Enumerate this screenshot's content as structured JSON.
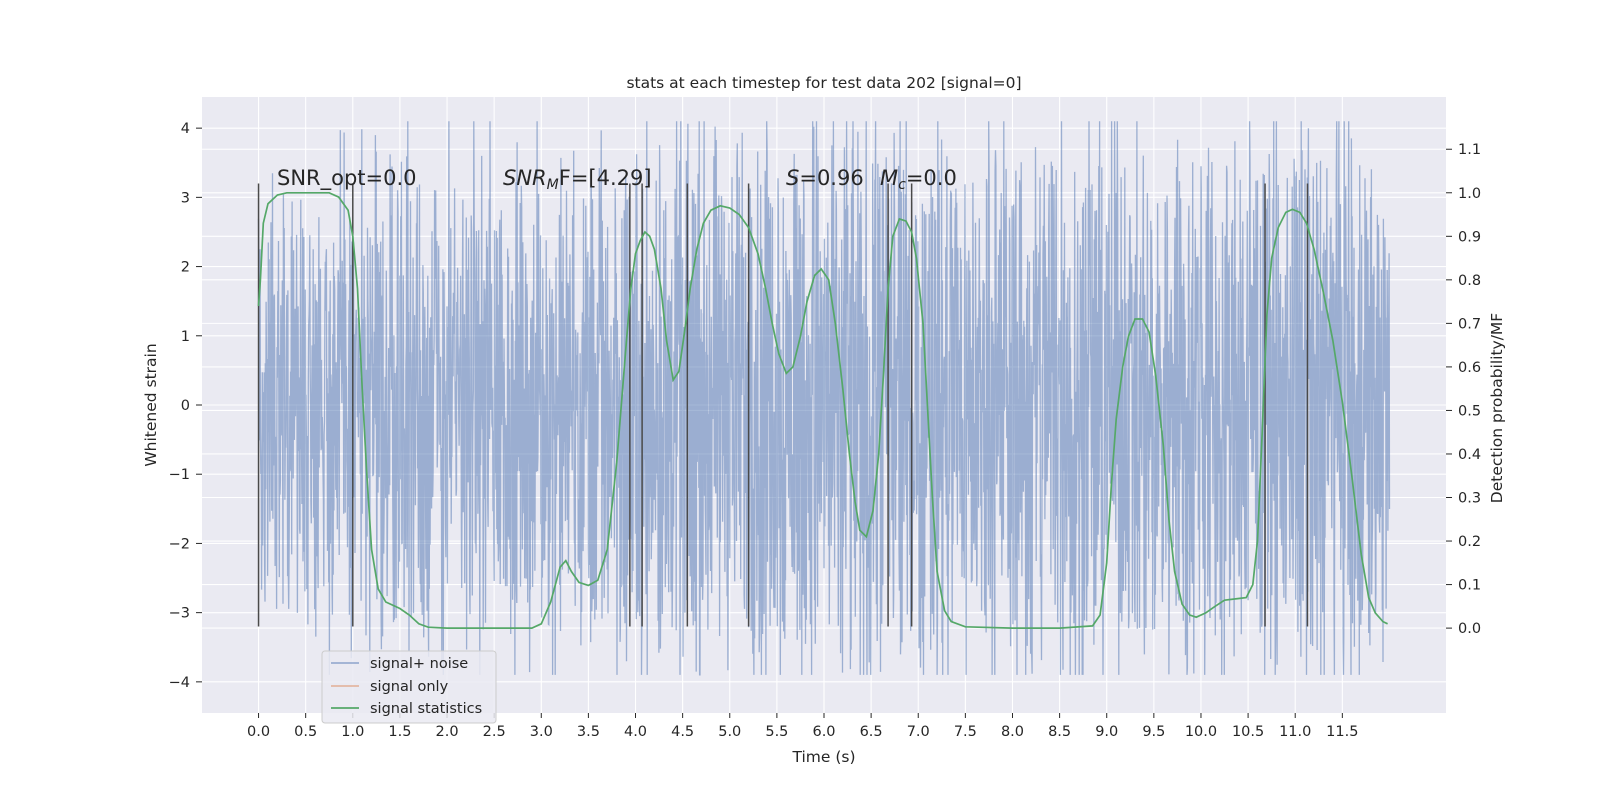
{
  "chart_data": {
    "type": "line",
    "title": "stats at each timestep for test data 202 [signal=0]",
    "xlabel": "Time (s)",
    "ylabel_left": "Whitened strain",
    "ylabel_right": "Detection probability/MF",
    "xlim": [
      -0.6,
      12.6
    ],
    "ylim_left": [
      -4.45,
      4.45
    ],
    "ylim_right": [
      -0.195,
      1.22
    ],
    "x_ticks": [
      "0.0",
      "0.5",
      "1.0",
      "1.5",
      "2.0",
      "2.5",
      "3.0",
      "3.5",
      "4.0",
      "4.5",
      "5.0",
      "5.5",
      "6.0",
      "6.5",
      "7.0",
      "7.5",
      "8.0",
      "8.5",
      "9.0",
      "9.5",
      "10.0",
      "10.5",
      "11.0",
      "11.5"
    ],
    "y_ticks_left": [
      "4",
      "3",
      "2",
      "1",
      "0",
      "−1",
      "−2",
      "−3",
      "−4"
    ],
    "y_ticks_right": [
      "1.1",
      "1.0",
      "0.9",
      "0.8",
      "0.7",
      "0.6",
      "0.5",
      "0.4",
      "0.3",
      "0.2",
      "0.1",
      "0.0"
    ],
    "grid": true,
    "legend_position": "lower-left",
    "annotations": [
      {
        "text": "SNR_opt=0.0"
      },
      {
        "base": "SNR",
        "sub": "M",
        "rest": "F=[4.29]"
      },
      {
        "base": "S",
        "rest": "=0.96"
      },
      {
        "base": "M",
        "sub": "c",
        "rest": "=0.0"
      }
    ],
    "series": [
      {
        "name": "signal+ noise",
        "color": "#4c72b0",
        "opacity": 0.5,
        "time_range": [
          0.0,
          12.0
        ],
        "y_range": [
          -3.9,
          4.1
        ],
        "envelope_points": [
          [
            0.0,
            2.4
          ],
          [
            0.5,
            2.6
          ],
          [
            1.0,
            3.1
          ],
          [
            2.0,
            3.2
          ],
          [
            3.0,
            2.8
          ],
          [
            4.0,
            3.3
          ],
          [
            5.0,
            3.1
          ],
          [
            5.6,
            3.6
          ],
          [
            6.05,
            4.0
          ],
          [
            7.0,
            3.4
          ],
          [
            8.0,
            3.5
          ],
          [
            8.5,
            3.9
          ],
          [
            9.0,
            3.1
          ],
          [
            10.0,
            3.3
          ],
          [
            11.0,
            3.4
          ],
          [
            11.55,
            4.1
          ],
          [
            12.0,
            2.5
          ]
        ]
      },
      {
        "name": "signal only",
        "color": "#dd8452",
        "values": []
      },
      {
        "name": "signal statistics",
        "color": "#55a868",
        "axis": "right",
        "points": [
          [
            0.0,
            0.74
          ],
          [
            0.02,
            0.8
          ],
          [
            0.05,
            0.93
          ],
          [
            0.1,
            0.975
          ],
          [
            0.2,
            0.995
          ],
          [
            0.3,
            1.0
          ],
          [
            0.5,
            1.0
          ],
          [
            0.75,
            1.0
          ],
          [
            0.85,
            0.99
          ],
          [
            0.95,
            0.96
          ],
          [
            1.0,
            0.9
          ],
          [
            1.05,
            0.78
          ],
          [
            1.1,
            0.55
          ],
          [
            1.15,
            0.35
          ],
          [
            1.2,
            0.18
          ],
          [
            1.27,
            0.09
          ],
          [
            1.35,
            0.06
          ],
          [
            1.5,
            0.045
          ],
          [
            1.6,
            0.03
          ],
          [
            1.7,
            0.01
          ],
          [
            1.8,
            0.002
          ],
          [
            2.0,
            0.0
          ],
          [
            2.5,
            0.0
          ],
          [
            2.9,
            0.0
          ],
          [
            3.0,
            0.01
          ],
          [
            3.1,
            0.06
          ],
          [
            3.2,
            0.14
          ],
          [
            3.26,
            0.155
          ],
          [
            3.32,
            0.13
          ],
          [
            3.4,
            0.105
          ],
          [
            3.5,
            0.098
          ],
          [
            3.6,
            0.11
          ],
          [
            3.7,
            0.18
          ],
          [
            3.8,
            0.38
          ],
          [
            3.9,
            0.65
          ],
          [
            3.95,
            0.78
          ],
          [
            4.0,
            0.86
          ],
          [
            4.05,
            0.89
          ],
          [
            4.1,
            0.91
          ],
          [
            4.15,
            0.9
          ],
          [
            4.2,
            0.87
          ],
          [
            4.27,
            0.78
          ],
          [
            4.33,
            0.66
          ],
          [
            4.4,
            0.57
          ],
          [
            4.46,
            0.59
          ],
          [
            4.52,
            0.68
          ],
          [
            4.58,
            0.78
          ],
          [
            4.65,
            0.87
          ],
          [
            4.72,
            0.93
          ],
          [
            4.8,
            0.96
          ],
          [
            4.9,
            0.97
          ],
          [
            5.0,
            0.965
          ],
          [
            5.1,
            0.95
          ],
          [
            5.2,
            0.92
          ],
          [
            5.3,
            0.86
          ],
          [
            5.38,
            0.78
          ],
          [
            5.45,
            0.7
          ],
          [
            5.52,
            0.63
          ],
          [
            5.6,
            0.585
          ],
          [
            5.67,
            0.6
          ],
          [
            5.75,
            0.67
          ],
          [
            5.82,
            0.75
          ],
          [
            5.9,
            0.81
          ],
          [
            5.97,
            0.825
          ],
          [
            6.05,
            0.8
          ],
          [
            6.12,
            0.7
          ],
          [
            6.2,
            0.55
          ],
          [
            6.27,
            0.4
          ],
          [
            6.33,
            0.29
          ],
          [
            6.38,
            0.225
          ],
          [
            6.45,
            0.21
          ],
          [
            6.52,
            0.27
          ],
          [
            6.58,
            0.4
          ],
          [
            6.63,
            0.58
          ],
          [
            6.68,
            0.78
          ],
          [
            6.73,
            0.9
          ],
          [
            6.8,
            0.94
          ],
          [
            6.87,
            0.935
          ],
          [
            6.93,
            0.91
          ],
          [
            6.98,
            0.85
          ],
          [
            7.05,
            0.7
          ],
          [
            7.1,
            0.5
          ],
          [
            7.15,
            0.3
          ],
          [
            7.2,
            0.13
          ],
          [
            7.28,
            0.04
          ],
          [
            7.35,
            0.015
          ],
          [
            7.5,
            0.003
          ],
          [
            8.0,
            0.0
          ],
          [
            8.5,
            0.0
          ],
          [
            8.85,
            0.005
          ],
          [
            8.93,
            0.03
          ],
          [
            9.0,
            0.15
          ],
          [
            9.05,
            0.33
          ],
          [
            9.1,
            0.48
          ],
          [
            9.17,
            0.6
          ],
          [
            9.23,
            0.67
          ],
          [
            9.3,
            0.71
          ],
          [
            9.38,
            0.71
          ],
          [
            9.45,
            0.68
          ],
          [
            9.52,
            0.58
          ],
          [
            9.6,
            0.42
          ],
          [
            9.66,
            0.25
          ],
          [
            9.72,
            0.13
          ],
          [
            9.8,
            0.055
          ],
          [
            9.88,
            0.03
          ],
          [
            9.95,
            0.025
          ],
          [
            10.05,
            0.035
          ],
          [
            10.15,
            0.05
          ],
          [
            10.25,
            0.064
          ],
          [
            10.4,
            0.068
          ],
          [
            10.48,
            0.07
          ],
          [
            10.55,
            0.1
          ],
          [
            10.6,
            0.2
          ],
          [
            10.65,
            0.45
          ],
          [
            10.7,
            0.72
          ],
          [
            10.75,
            0.85
          ],
          [
            10.82,
            0.92
          ],
          [
            10.9,
            0.955
          ],
          [
            10.97,
            0.962
          ],
          [
            11.05,
            0.955
          ],
          [
            11.12,
            0.93
          ],
          [
            11.2,
            0.87
          ],
          [
            11.3,
            0.77
          ],
          [
            11.4,
            0.66
          ],
          [
            11.5,
            0.52
          ],
          [
            11.6,
            0.35
          ],
          [
            11.7,
            0.17
          ],
          [
            11.78,
            0.07
          ],
          [
            11.85,
            0.035
          ],
          [
            11.93,
            0.015
          ],
          [
            11.98,
            0.01
          ]
        ]
      }
    ],
    "vertical_markers": [
      {
        "x": 0.0,
        "y_range": [
          -3.2,
          3.2
        ]
      },
      {
        "x": 1.0,
        "y_range": [
          -3.2,
          3.2
        ]
      },
      {
        "x": 3.94,
        "y_range": [
          -3.2,
          3.2
        ]
      },
      {
        "x": 4.07,
        "y_range": [
          -3.2,
          3.2
        ]
      },
      {
        "x": 4.55,
        "y_range": [
          -3.2,
          3.2
        ]
      },
      {
        "x": 5.2,
        "y_range": [
          -3.2,
          3.2
        ]
      },
      {
        "x": 6.68,
        "y_range": [
          -3.2,
          3.2
        ]
      },
      {
        "x": 6.93,
        "y_range": [
          -3.2,
          3.2
        ]
      },
      {
        "x": 10.68,
        "y_range": [
          -3.2,
          3.2
        ]
      },
      {
        "x": 11.13,
        "y_range": [
          -3.2,
          3.2
        ]
      }
    ]
  }
}
